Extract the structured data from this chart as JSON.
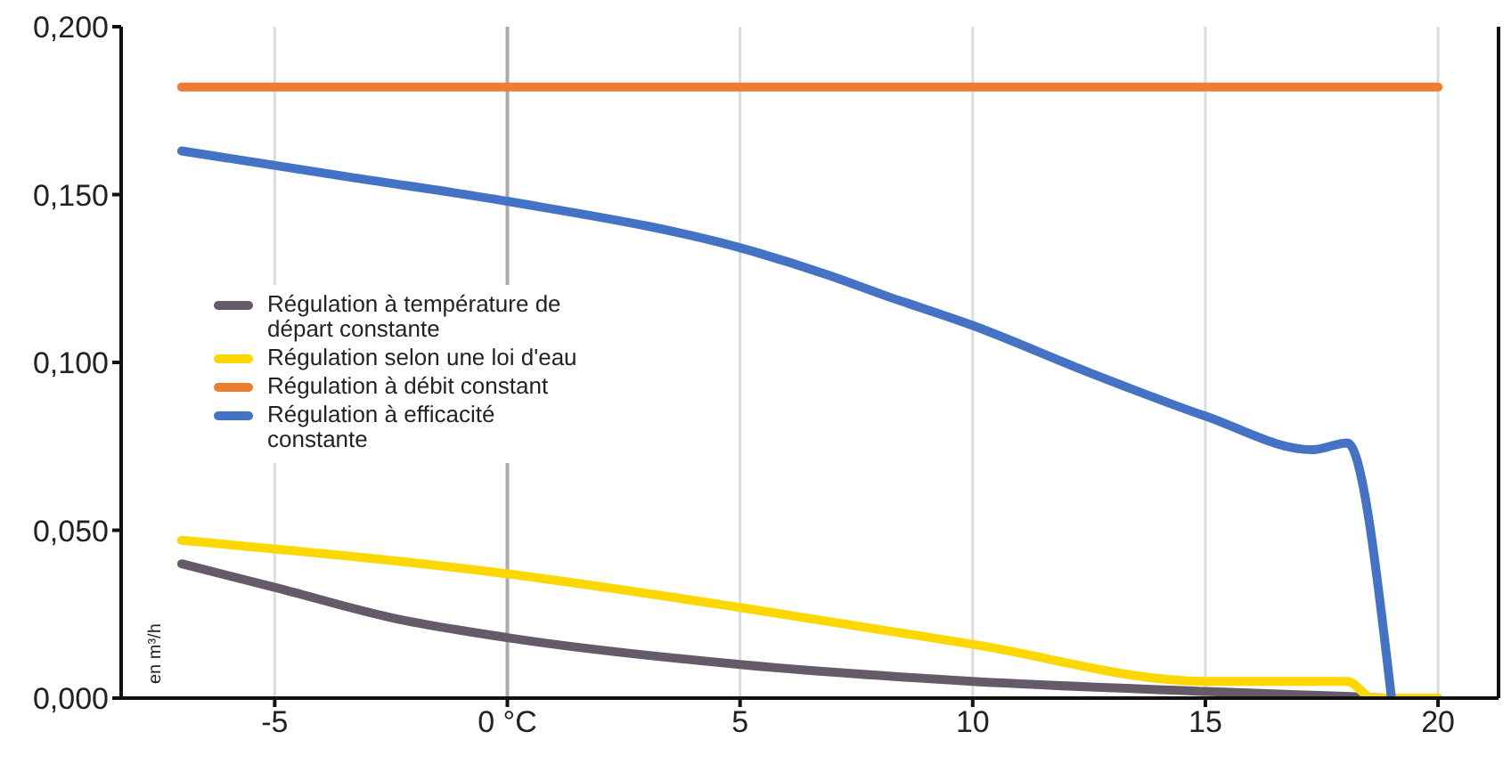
{
  "chart_data": {
    "type": "line",
    "ylabel": "en m³/h",
    "xlim": [
      -8.3,
      21.3
    ],
    "xticks": [
      -5,
      {
        "value": 0,
        "label": "0 °C"
      },
      5,
      10,
      15,
      20
    ],
    "ylim": [
      0,
      0.2
    ],
    "yticks": [
      {
        "value": 0,
        "label": "0,000"
      },
      {
        "value": 0.05,
        "label": "0,050"
      },
      {
        "value": 0.1,
        "label": "0,100"
      },
      {
        "value": 0.15,
        "label": "0,150"
      },
      {
        "value": 0.2,
        "label": "0,200"
      }
    ],
    "grid": true,
    "legend": "left",
    "marker": "none",
    "line_style": "solid",
    "ref_lines": [
      {
        "axis": "x",
        "value": 0,
        "color": "#aaaaaa"
      }
    ],
    "series": [
      {
        "name": "Régulation à température de départ constante",
        "color": "#655b68",
        "x": [
          -7,
          -5,
          -2.5,
          0,
          5,
          10,
          15,
          18,
          19,
          20
        ],
        "values": [
          0.04,
          0.033,
          0.024,
          0.018,
          0.01,
          0.005,
          0.002,
          0.0005,
          0,
          0
        ]
      },
      {
        "name": "Régulation selon une loi d'eau",
        "color": "#fcd800",
        "x": [
          -7,
          0,
          5,
          10,
          15,
          17.3,
          18.05,
          18.6,
          20
        ],
        "values": [
          0.047,
          0.037,
          0.027,
          0.016,
          0.005,
          0.005,
          0.005,
          0,
          0
        ]
      },
      {
        "name": "Régulation à débit constant",
        "color": "#ed7d31",
        "x": [
          -7,
          20
        ],
        "values": [
          0.182,
          0.182
        ]
      },
      {
        "name": "Régulation à efficacité constante",
        "color": "#4472c4",
        "x": [
          -7,
          -3.3,
          0,
          5.3,
          6.9,
          8.1,
          10,
          12.5,
          15,
          17.3,
          18.05,
          19
        ],
        "values": [
          0.163,
          0.155,
          0.148,
          0.133,
          0.126,
          0.12,
          0.111,
          0.097,
          0.084,
          0.074,
          0.076,
          0
        ]
      }
    ]
  }
}
